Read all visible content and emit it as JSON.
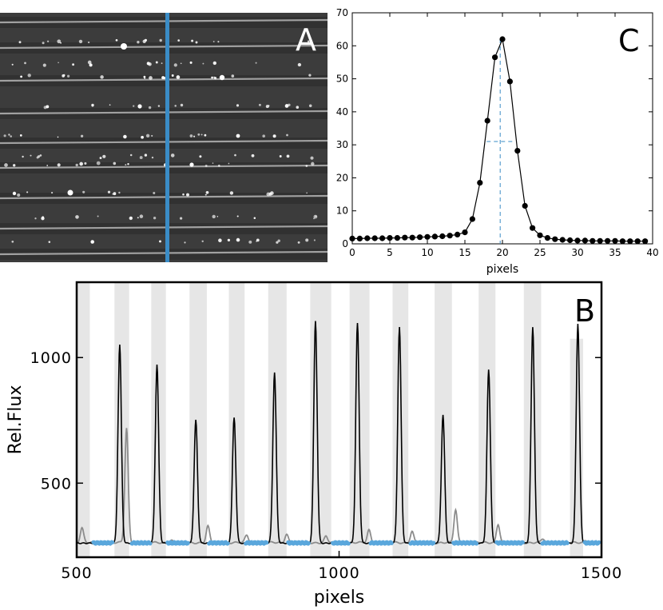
{
  "panels": {
    "A": {
      "letter": "A"
    },
    "B": {
      "letter": "B"
    },
    "C": {
      "letter": "C"
    }
  },
  "colors": {
    "accent": "#3a8cc6",
    "blue_dots": "#5aa7dc",
    "gray_band": "#e6e6e6",
    "gray_line": "#8c8c8c"
  },
  "chart_data": [
    {
      "id": "C",
      "type": "scatter",
      "title": "",
      "xlabel": "pixels",
      "ylabel": "",
      "xlim": [
        0,
        40
      ],
      "ylim": [
        0,
        70
      ],
      "xticks": [
        0,
        5,
        10,
        15,
        20,
        25,
        30,
        35,
        40
      ],
      "yticks": [
        0,
        10,
        20,
        30,
        40,
        50,
        60,
        70
      ],
      "x": [
        0,
        1,
        2,
        3,
        4,
        5,
        6,
        7,
        8,
        9,
        10,
        11,
        12,
        13,
        14,
        15,
        16,
        17,
        18,
        19,
        20,
        21,
        22,
        23,
        24,
        25,
        26,
        27,
        28,
        29,
        30,
        31,
        32,
        33,
        34,
        35,
        36,
        37,
        38,
        39
      ],
      "y": [
        1.6,
        1.6,
        1.7,
        1.7,
        1.7,
        1.8,
        1.8,
        1.9,
        1.9,
        2.0,
        2.1,
        2.2,
        2.3,
        2.5,
        2.8,
        3.5,
        7.5,
        18.5,
        37.3,
        56.5,
        62.0,
        49.2,
        28.2,
        11.5,
        4.8,
        2.6,
        1.8,
        1.4,
        1.2,
        1.1,
        1.0,
        1.0,
        0.9,
        0.9,
        0.9,
        0.9,
        0.8,
        0.8,
        0.8,
        0.8
      ],
      "annotations": {
        "center_x": 19.7,
        "half_max_y": 31,
        "fwhm_range": [
          17.9,
          21.6
        ]
      }
    },
    {
      "id": "B",
      "type": "line",
      "title": "",
      "xlabel": "pixels",
      "ylabel": "Rel.Flux",
      "xlim": [
        500,
        1500
      ],
      "ylim": [
        205,
        1300
      ],
      "xticks": [
        500,
        1000,
        1500
      ],
      "yticks": [
        500,
        1000
      ],
      "baseline": 265,
      "bands": [
        [
          500,
          525
        ],
        [
          572,
          600
        ],
        [
          642,
          670
        ],
        [
          715,
          748
        ],
        [
          790,
          820
        ],
        [
          865,
          900
        ],
        [
          945,
          985
        ],
        [
          1020,
          1058
        ],
        [
          1102,
          1132
        ],
        [
          1182,
          1215
        ],
        [
          1266,
          1298
        ],
        [
          1352,
          1385
        ],
        [
          1440,
          1465
        ]
      ],
      "series": [
        {
          "name": "black",
          "peaks": [
            [
              582,
              1055
            ],
            [
              653,
              975
            ],
            [
              727,
              755
            ],
            [
              800,
              765
            ],
            [
              877,
              945
            ],
            [
              955,
              1150
            ],
            [
              1035,
              1140
            ],
            [
              1115,
              1125
            ],
            [
              1198,
              775
            ],
            [
              1285,
              955
            ],
            [
              1369,
              1125
            ],
            [
              1455,
              1140
            ]
          ]
        },
        {
          "name": "gray",
          "peaks": [
            [
              510,
              325
            ],
            [
              595,
              720
            ],
            [
              680,
              275
            ],
            [
              750,
              330
            ],
            [
              824,
              295
            ],
            [
              900,
              300
            ],
            [
              975,
              290
            ],
            [
              1057,
              315
            ],
            [
              1139,
              310
            ],
            [
              1222,
              395
            ],
            [
              1303,
              340
            ],
            [
              1388,
              280
            ],
            [
              1470,
              275
            ]
          ]
        },
        {
          "name": "blue",
          "segments": [
            [
              532,
              568
            ],
            [
              605,
              640
            ],
            [
              673,
              712
            ],
            [
              752,
              788
            ],
            [
              822,
              862
            ],
            [
              903,
              942
            ],
            [
              988,
              1018
            ],
            [
              1060,
              1100
            ],
            [
              1136,
              1180
            ],
            [
              1218,
              1262
            ],
            [
              1300,
              1350
            ],
            [
              1387,
              1435
            ],
            [
              1468,
              1495
            ]
          ]
        }
      ]
    }
  ]
}
